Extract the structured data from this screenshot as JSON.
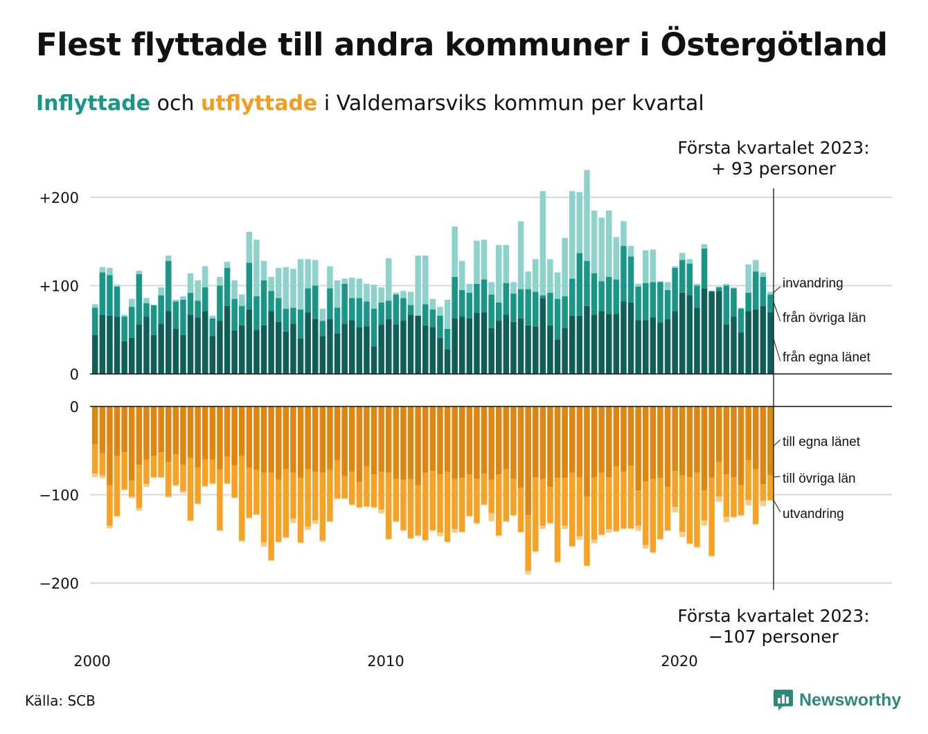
{
  "title": "Flest flyttade till andra kommuner i Östergötland",
  "subtitle": {
    "in_word": "Inflyttade",
    "and_word": "och",
    "out_word": "utflyttade",
    "rest": "i Valdemarsviks kommun per kvartal"
  },
  "annotations": {
    "top_line1": "Första kvartalet 2023:",
    "top_line2": "+ 93 personer",
    "bottom_line1": "Första kvartalet 2023:",
    "bottom_line2": "−107 personer"
  },
  "source": "Källa: SCB",
  "brand": "Newsworthy",
  "colors": {
    "in_dark": "#0f5e57",
    "in_mid": "#1a9688",
    "in_light": "#8dd3cb",
    "out_dark": "#de8512",
    "out_mid": "#f7a125",
    "out_light": "#f8cc86",
    "grid": "#d9d9d9",
    "brand": "#2a8a7c"
  },
  "chart_data": {
    "type": "bar",
    "stacking": "stacked",
    "x_start": "2000 Q1",
    "x_end": "2023 Q1",
    "x_ticks": [
      "2000",
      "2010",
      "2020"
    ],
    "inflow": {
      "ylim": [
        0,
        200
      ],
      "y_ticks": [
        {
          "value": 200,
          "label": "+200"
        },
        {
          "value": 100,
          "label": "+100"
        },
        {
          "value": 0,
          "label": "0"
        }
      ],
      "series_labels": [
        "invandring",
        "från övriga län",
        "från egna länet"
      ],
      "from_own_county": [
        44,
        67,
        66,
        65,
        37,
        41,
        56,
        65,
        44,
        57,
        71,
        51,
        44,
        67,
        64,
        71,
        43,
        60,
        77,
        49,
        55,
        73,
        50,
        55,
        71,
        59,
        48,
        57,
        40,
        70,
        62,
        43,
        62,
        46,
        57,
        61,
        53,
        54,
        31,
        56,
        62,
        56,
        60,
        67,
        66,
        55,
        53,
        41,
        28,
        63,
        65,
        63,
        69,
        70,
        52,
        60,
        67,
        59,
        63,
        55,
        54,
        86,
        55,
        39,
        52,
        66,
        66,
        77,
        67,
        71,
        68,
        68,
        82,
        81,
        61,
        61,
        64,
        58,
        62,
        71,
        92,
        89,
        75,
        97,
        93,
        94,
        56,
        65,
        47,
        71,
        73,
        77,
        70
      ],
      "from_other_counties": [
        31,
        48,
        46,
        34,
        28,
        35,
        57,
        15,
        34,
        32,
        57,
        31,
        40,
        25,
        19,
        27,
        20,
        40,
        43,
        36,
        22,
        53,
        38,
        51,
        23,
        27,
        26,
        18,
        33,
        27,
        38,
        17,
        35,
        29,
        45,
        25,
        33,
        28,
        43,
        25,
        21,
        34,
        26,
        11,
        0,
        24,
        20,
        25,
        23,
        47,
        30,
        29,
        33,
        37,
        38,
        21,
        36,
        32,
        33,
        41,
        39,
        3,
        37,
        46,
        36,
        42,
        71,
        51,
        47,
        34,
        42,
        39,
        63,
        52,
        38,
        42,
        40,
        46,
        33,
        49,
        37,
        36,
        25,
        45,
        1,
        4,
        44,
        32,
        27,
        21,
        43,
        33,
        20
      ],
      "immigration": [
        4,
        6,
        8,
        2,
        2,
        9,
        4,
        6,
        0,
        9,
        6,
        2,
        4,
        22,
        23,
        24,
        3,
        10,
        7,
        21,
        13,
        35,
        64,
        22,
        16,
        34,
        47,
        44,
        57,
        33,
        29,
        14,
        25,
        31,
        6,
        23,
        22,
        20,
        27,
        17,
        48,
        2,
        8,
        15,
        68,
        55,
        12,
        10,
        33,
        57,
        33,
        10,
        49,
        45,
        14,
        65,
        43,
        13,
        77,
        20,
        37,
        118,
        38,
        30,
        66,
        99,
        69,
        103,
        71,
        72,
        75,
        48,
        28,
        12,
        3,
        37,
        37,
        1,
        9,
        2,
        8,
        5,
        2,
        5,
        0,
        1,
        2,
        1,
        1,
        32,
        13,
        5,
        3
      ]
    },
    "outflow": {
      "ylim": [
        -200,
        0
      ],
      "y_ticks": [
        {
          "value": 0,
          "label": "0"
        },
        {
          "value": -100,
          "label": "−100"
        },
        {
          "value": -200,
          "label": "−200"
        }
      ],
      "series_labels": [
        "till egna länet",
        "till övriga län",
        "utvandring"
      ],
      "to_own_county": [
        -43,
        -53,
        -89,
        -56,
        -52,
        -84,
        -66,
        -60,
        -56,
        -52,
        -63,
        -54,
        -66,
        -58,
        -69,
        -60,
        -60,
        -71,
        -57,
        -67,
        -56,
        -69,
        -72,
        -75,
        -75,
        -83,
        -71,
        -75,
        -81,
        -71,
        -74,
        -75,
        -72,
        -61,
        -79,
        -74,
        -86,
        -68,
        -77,
        -74,
        -75,
        -82,
        -83,
        -82,
        -89,
        -75,
        -73,
        -77,
        -74,
        -82,
        -81,
        -77,
        -82,
        -76,
        -83,
        -77,
        -71,
        -82,
        -92,
        -123,
        -80,
        -82,
        -91,
        -81,
        -81,
        -75,
        -80,
        -102,
        -80,
        -75,
        -80,
        -68,
        -74,
        -67,
        -95,
        -85,
        -82,
        -81,
        -91,
        -73,
        -78,
        -80,
        -75,
        -95,
        -81,
        -63,
        -77,
        -80,
        -89,
        -61,
        -71,
        -88,
        -78
      ],
      "to_other_counties": [
        -33,
        -25,
        -46,
        -68,
        -42,
        -18,
        -49,
        -28,
        -24,
        -28,
        -39,
        -35,
        -30,
        -71,
        -41,
        -30,
        -27,
        -69,
        -30,
        -36,
        -96,
        -57,
        -50,
        -79,
        -99,
        -70,
        -77,
        -52,
        -73,
        -65,
        -55,
        -77,
        -58,
        -43,
        -25,
        -37,
        -28,
        -45,
        -37,
        -43,
        -75,
        -48,
        -57,
        -67,
        -57,
        -76,
        -67,
        -66,
        -79,
        -57,
        -61,
        -47,
        -50,
        -35,
        -38,
        -69,
        -59,
        -41,
        -50,
        -63,
        -84,
        -53,
        -41,
        -95,
        -54,
        -83,
        -67,
        -78,
        -71,
        -70,
        -59,
        -73,
        -64,
        -71,
        -40,
        -72,
        -83,
        -69,
        -49,
        -41,
        -64,
        -75,
        -84,
        -34,
        -88,
        -39,
        -48,
        -45,
        -34,
        -45,
        -62,
        -19,
        -28
      ],
      "emigration": [
        -4,
        -3,
        -3,
        -1,
        -1,
        -2,
        -3,
        -3,
        -1,
        -1,
        -1,
        -1,
        -2,
        -1,
        -1,
        -1,
        -1,
        -1,
        -1,
        -1,
        -1,
        -1,
        -1,
        -5,
        -1,
        -1,
        -1,
        -5,
        -1,
        -4,
        -4,
        -1,
        -1,
        -1,
        -1,
        -1,
        -1,
        -1,
        -1,
        -4,
        -1,
        -1,
        -1,
        -1,
        -1,
        -1,
        -1,
        -4,
        -1,
        -4,
        -1,
        -1,
        -1,
        -1,
        -9,
        -1,
        -1,
        -1,
        -1,
        -4,
        -1,
        -4,
        -1,
        -1,
        -4,
        -1,
        -4,
        -1,
        -4,
        -1,
        -4,
        -1,
        -1,
        -1,
        -6,
        -4,
        -1,
        -1,
        -1,
        -6,
        -6,
        -1,
        -1,
        -6,
        -1,
        -6,
        -6,
        -1,
        -1,
        -6,
        -1,
        -6,
        -1
      ]
    }
  }
}
